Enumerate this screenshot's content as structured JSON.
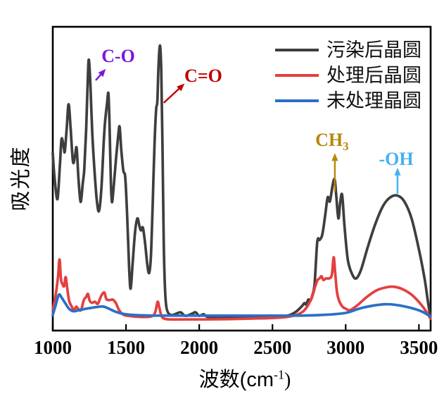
{
  "xlabel_parts": {
    "prefix": "波数(cm",
    "sup": "-1",
    "suffix": ")"
  },
  "chart_data": {
    "type": "line",
    "title": "",
    "xlabel": "波数(cm⁻¹)",
    "ylabel": "吸光度",
    "x_ticks": [
      "1000",
      "1500",
      "2000",
      "2500",
      "3000",
      "3500"
    ],
    "x_range": [
      1000,
      3580
    ],
    "y_range": [
      0,
      1.05
    ],
    "grid": false,
    "legend_position": "upper-right-no-frame",
    "series": [
      {
        "name": "污染后晶圆",
        "color": "#3e3e3e",
        "points": [
          [
            1000,
            0.61
          ],
          [
            1012,
            0.52
          ],
          [
            1032,
            0.44
          ],
          [
            1048,
            0.56
          ],
          [
            1060,
            0.662
          ],
          [
            1075,
            0.63
          ],
          [
            1082,
            0.616
          ],
          [
            1095,
            0.7
          ],
          [
            1108,
            0.79
          ],
          [
            1122,
            0.7
          ],
          [
            1138,
            0.578
          ],
          [
            1152,
            0.6
          ],
          [
            1163,
            0.629
          ],
          [
            1175,
            0.52
          ],
          [
            1190,
            0.43
          ],
          [
            1205,
            0.5
          ],
          [
            1215,
            0.551
          ],
          [
            1228,
            0.7
          ],
          [
            1240,
            0.9
          ],
          [
            1247,
            0.953
          ],
          [
            1257,
            0.86
          ],
          [
            1270,
            0.68
          ],
          [
            1285,
            0.545
          ],
          [
            1300,
            0.44
          ],
          [
            1315,
            0.396
          ],
          [
            1332,
            0.48
          ],
          [
            1348,
            0.65
          ],
          [
            1357,
            0.725
          ],
          [
            1370,
            0.79
          ],
          [
            1380,
            0.829
          ],
          [
            1388,
            0.7
          ],
          [
            1397,
            0.5
          ],
          [
            1404,
            0.429
          ],
          [
            1415,
            0.48
          ],
          [
            1432,
            0.59
          ],
          [
            1448,
            0.68
          ],
          [
            1457,
            0.706
          ],
          [
            1468,
            0.62
          ],
          [
            1482,
            0.545
          ],
          [
            1495,
            0.52
          ],
          [
            1508,
            0.38
          ],
          [
            1522,
            0.18
          ],
          [
            1532,
            0.11
          ],
          [
            1545,
            0.2
          ],
          [
            1562,
            0.32
          ],
          [
            1578,
            0.369
          ],
          [
            1592,
            0.34
          ],
          [
            1602,
            0.325
          ],
          [
            1615,
            0.335
          ],
          [
            1630,
            0.28
          ],
          [
            1645,
            0.2
          ],
          [
            1658,
            0.168
          ],
          [
            1670,
            0.23
          ],
          [
            1682,
            0.42
          ],
          [
            1695,
            0.65
          ],
          [
            1706,
            0.771
          ],
          [
            1714,
            0.8
          ],
          [
            1721,
            0.92
          ],
          [
            1728,
            0.99
          ],
          [
            1734,
            1.0
          ],
          [
            1741,
            0.91
          ],
          [
            1749,
            0.64
          ],
          [
            1757,
            0.3
          ],
          [
            1765,
            0.13
          ],
          [
            1774,
            0.049
          ],
          [
            1788,
            0.021
          ],
          [
            1810,
            0.013
          ],
          [
            1835,
            0.016
          ],
          [
            1872,
            0.023
          ],
          [
            1905,
            0.01
          ],
          [
            1950,
            0.018
          ],
          [
            1975,
            0.023
          ],
          [
            2000,
            0.01
          ],
          [
            2030,
            0.016
          ],
          [
            2060,
            0.006
          ],
          [
            2150,
            0.005
          ],
          [
            2250,
            0.004
          ],
          [
            2350,
            0.008
          ],
          [
            2450,
            0.005
          ],
          [
            2550,
            0.008
          ],
          [
            2610,
            0.012
          ],
          [
            2660,
            0.025
          ],
          [
            2700,
            0.045
          ],
          [
            2718,
            0.057
          ],
          [
            2730,
            0.052
          ],
          [
            2745,
            0.07
          ],
          [
            2758,
            0.066
          ],
          [
            2772,
            0.085
          ],
          [
            2788,
            0.13
          ],
          [
            2806,
            0.283
          ],
          [
            2822,
            0.29
          ],
          [
            2840,
            0.309
          ],
          [
            2860,
            0.38
          ],
          [
            2877,
            0.447
          ],
          [
            2892,
            0.432
          ],
          [
            2912,
            0.495
          ],
          [
            2925,
            0.512
          ],
          [
            2936,
            0.45
          ],
          [
            2950,
            0.369
          ],
          [
            2963,
            0.43
          ],
          [
            2976,
            0.455
          ],
          [
            2992,
            0.34
          ],
          [
            3015,
            0.215
          ],
          [
            3045,
            0.163
          ],
          [
            3072,
            0.148
          ],
          [
            3105,
            0.18
          ],
          [
            3150,
            0.262
          ],
          [
            3200,
            0.345
          ],
          [
            3255,
            0.415
          ],
          [
            3305,
            0.447
          ],
          [
            3355,
            0.453
          ],
          [
            3400,
            0.432
          ],
          [
            3450,
            0.369
          ],
          [
            3500,
            0.255
          ],
          [
            3540,
            0.143
          ],
          [
            3562,
            0.06
          ],
          [
            3578,
            0.008
          ]
        ]
      },
      {
        "name": "处理后晶圆",
        "color": "#e3403f",
        "points": [
          [
            1000,
            0.031
          ],
          [
            1018,
            0.08
          ],
          [
            1035,
            0.15
          ],
          [
            1046,
            0.218
          ],
          [
            1056,
            0.145
          ],
          [
            1068,
            0.125
          ],
          [
            1078,
            0.12
          ],
          [
            1088,
            0.153
          ],
          [
            1098,
            0.115
          ],
          [
            1112,
            0.065
          ],
          [
            1128,
            0.046
          ],
          [
            1145,
            0.031
          ],
          [
            1160,
            0.044
          ],
          [
            1172,
            0.037
          ],
          [
            1192,
            0.031
          ],
          [
            1212,
            0.068
          ],
          [
            1228,
            0.08
          ],
          [
            1240,
            0.091
          ],
          [
            1252,
            0.066
          ],
          [
            1268,
            0.058
          ],
          [
            1288,
            0.062
          ],
          [
            1308,
            0.055
          ],
          [
            1330,
            0.083
          ],
          [
            1352,
            0.096
          ],
          [
            1366,
            0.072
          ],
          [
            1388,
            0.068
          ],
          [
            1410,
            0.07
          ],
          [
            1430,
            0.058
          ],
          [
            1452,
            0.032
          ],
          [
            1478,
            0.016
          ],
          [
            1515,
            0.01
          ],
          [
            1600,
            0.006
          ],
          [
            1675,
            0.008
          ],
          [
            1700,
            0.025
          ],
          [
            1716,
            0.062
          ],
          [
            1728,
            0.04
          ],
          [
            1742,
            0.01
          ],
          [
            1760,
            0.0
          ],
          [
            1800,
            -0.003
          ],
          [
            1900,
            -0.003
          ],
          [
            2050,
            -0.003
          ],
          [
            2200,
            -0.002
          ],
          [
            2350,
            0.0
          ],
          [
            2500,
            0.002
          ],
          [
            2600,
            0.006
          ],
          [
            2670,
            0.015
          ],
          [
            2720,
            0.032
          ],
          [
            2765,
            0.072
          ],
          [
            2790,
            0.115
          ],
          [
            2808,
            0.142
          ],
          [
            2822,
            0.148
          ],
          [
            2835,
            0.156
          ],
          [
            2848,
            0.142
          ],
          [
            2865,
            0.148
          ],
          [
            2885,
            0.148
          ],
          [
            2905,
            0.16
          ],
          [
            2918,
            0.226
          ],
          [
            2928,
            0.17
          ],
          [
            2940,
            0.1
          ],
          [
            2955,
            0.066
          ],
          [
            2978,
            0.044
          ],
          [
            3002,
            0.036
          ],
          [
            3030,
            0.031
          ],
          [
            3080,
            0.049
          ],
          [
            3145,
            0.08
          ],
          [
            3215,
            0.105
          ],
          [
            3285,
            0.116
          ],
          [
            3335,
            0.117
          ],
          [
            3390,
            0.108
          ],
          [
            3450,
            0.088
          ],
          [
            3510,
            0.055
          ],
          [
            3555,
            0.022
          ],
          [
            3578,
            0.0
          ]
        ]
      },
      {
        "name": "未处理晶圆",
        "color": "#2b6fc6",
        "points": [
          [
            1000,
            0.013
          ],
          [
            1020,
            0.05
          ],
          [
            1042,
            0.088
          ],
          [
            1062,
            0.076
          ],
          [
            1085,
            0.057
          ],
          [
            1110,
            0.037
          ],
          [
            1140,
            0.027
          ],
          [
            1180,
            0.031
          ],
          [
            1225,
            0.036
          ],
          [
            1270,
            0.04
          ],
          [
            1318,
            0.044
          ],
          [
            1348,
            0.044
          ],
          [
            1385,
            0.036
          ],
          [
            1425,
            0.026
          ],
          [
            1475,
            0.018
          ],
          [
            1560,
            0.013
          ],
          [
            1700,
            0.011
          ],
          [
            1900,
            0.011
          ],
          [
            2100,
            0.011
          ],
          [
            2300,
            0.011
          ],
          [
            2500,
            0.011
          ],
          [
            2700,
            0.011
          ],
          [
            2820,
            0.013
          ],
          [
            2920,
            0.016
          ],
          [
            3010,
            0.022
          ],
          [
            3100,
            0.038
          ],
          [
            3190,
            0.048
          ],
          [
            3270,
            0.053
          ],
          [
            3350,
            0.05
          ],
          [
            3440,
            0.04
          ],
          [
            3520,
            0.026
          ],
          [
            3578,
            0.008
          ]
        ]
      }
    ],
    "annotations": [
      {
        "label": "C-O",
        "color": "#7a16d8",
        "text_x": 1447,
        "text_y": 0.966,
        "arrow_from": [
          1293,
          0.878
        ],
        "arrow_to": [
          1362,
          0.92
        ]
      },
      {
        "label": "C=O",
        "color": "#c00000",
        "text_x": 2028,
        "text_y": 0.894,
        "arrow_from": [
          1758,
          0.795
        ],
        "arrow_to": [
          1900,
          0.866
        ]
      },
      {
        "label": "CH",
        "sub": "3",
        "color": "#b8860b",
        "text_x": 2907,
        "text_y": 0.652,
        "arrow_from": [
          2926,
          0.468
        ],
        "arrow_to": [
          2926,
          0.61
        ]
      },
      {
        "label": "-OH",
        "color": "#45b1f0",
        "text_x": 3345,
        "text_y": 0.586,
        "arrow_from": [
          3354,
          0.46
        ],
        "arrow_to": [
          3354,
          0.556
        ]
      }
    ]
  }
}
